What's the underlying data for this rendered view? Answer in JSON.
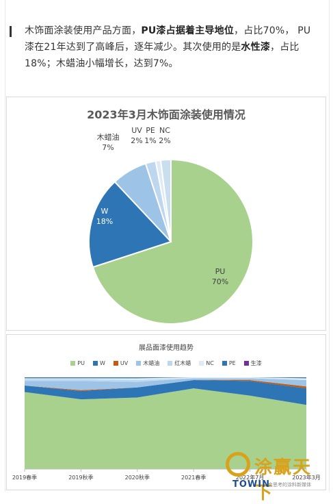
{
  "article": {
    "runs": [
      {
        "text": "木饰面涂装使用产品方面，",
        "bold": false
      },
      {
        "text": "PU漆占据着主导地位",
        "bold": true
      },
      {
        "text": "，占比70%， PU漆在21年达到了高峰后，逐年减少。其次使用的是",
        "bold": false
      },
      {
        "text": "水性漆",
        "bold": true
      },
      {
        "text": "，占比18%；木蜡油小幅增长，达到7%。",
        "bold": false
      }
    ]
  },
  "chart_data": [
    {
      "type": "pie",
      "title": "2023年3月木饰面涂装使用情况",
      "slices": [
        {
          "name": "PU",
          "value": 70,
          "label": "70%",
          "color": "#a9d18e"
        },
        {
          "name": "W",
          "value": 18,
          "label": "18%",
          "color": "#2e75b6"
        },
        {
          "name": "木蜡油",
          "value": 7,
          "label": "7%",
          "color": "#9dc3e6"
        },
        {
          "name": "UV",
          "value": 2,
          "label": "2%",
          "color": "#bdd7ee"
        },
        {
          "name": "PE",
          "value": 1,
          "label": "1%",
          "color": "#deebf7"
        },
        {
          "name": "NC",
          "value": 2,
          "label": "2%",
          "color": "#c9dff0"
        }
      ]
    },
    {
      "type": "area",
      "stacked": "percent",
      "title": "展品面漆使用趋势",
      "legend_position": "top",
      "categories": [
        "2019春季",
        "2019秋季",
        "2020秋季",
        "2021春季",
        "2022年7月",
        "2023年3月"
      ],
      "series": [
        {
          "name": "PU",
          "color": "#a9d18e",
          "values": [
            84,
            76,
            78,
            88,
            80,
            70
          ]
        },
        {
          "name": "W",
          "color": "#2e75b6",
          "values": [
            7,
            9,
            11,
            9,
            16,
            18
          ]
        },
        {
          "name": "UV",
          "color": "#c55a11",
          "values": [
            0,
            1,
            0,
            0,
            1,
            2
          ]
        },
        {
          "name": "木蜡油",
          "color": "#9dc3e6",
          "values": [
            5,
            10,
            6,
            2,
            2,
            7
          ]
        },
        {
          "name": "红木蜡",
          "color": "#bdd7ee",
          "values": [
            2,
            2,
            2,
            0,
            0,
            0
          ]
        },
        {
          "name": "NC",
          "color": "#deebf7",
          "values": [
            1,
            1,
            2,
            1,
            1,
            2
          ]
        },
        {
          "name": "PE",
          "color": "#2e75b6",
          "values": [
            1,
            1,
            1,
            0,
            0,
            1
          ]
        },
        {
          "name": "生漆",
          "color": "#7030a0",
          "values": [
            0,
            0,
            0,
            0,
            0,
            0
          ]
        }
      ],
      "ylim": [
        0,
        100
      ],
      "grid": false
    }
  ],
  "watermark": {
    "chinese": "涂赢天下",
    "brand": "TOWIN",
    "slogan": "会思考的涂料新媒体"
  }
}
